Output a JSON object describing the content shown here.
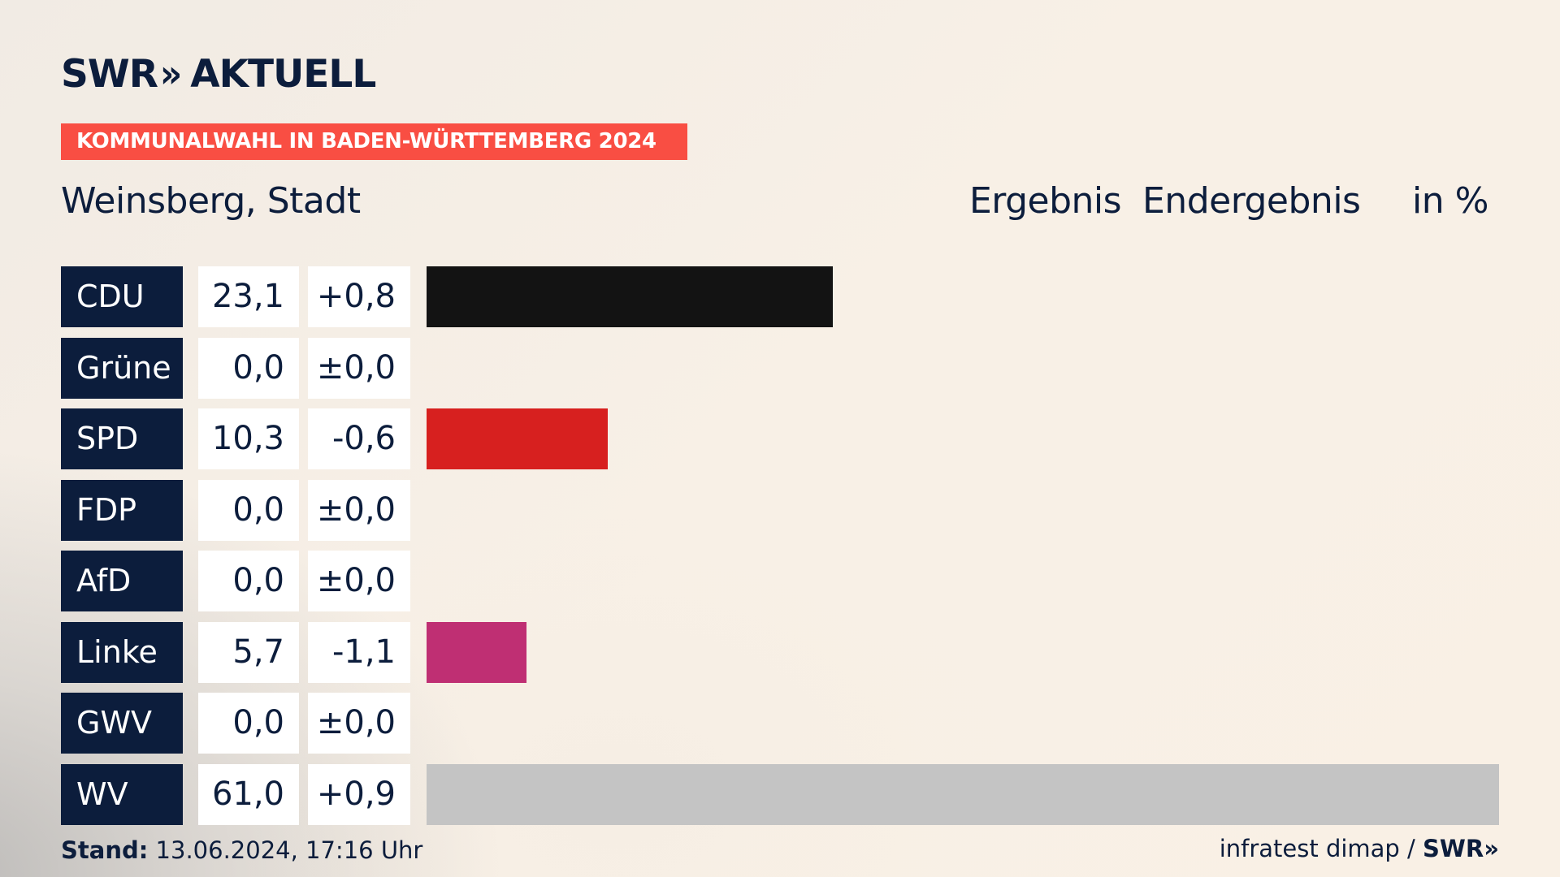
{
  "header": {
    "logo_text": "SWR",
    "logo_chevrons": "»",
    "logo_suffix": "AKTUELL",
    "banner": "KOMMUNALWAHL IN BADEN-WÜRTTEMBERG 2024",
    "region": "Weinsberg, Stadt",
    "col_result": "Ergebnis",
    "col_final": "Endergebnis",
    "col_unit": "in %"
  },
  "chart_data": {
    "type": "bar",
    "categories": [
      "CDU",
      "Grüne",
      "SPD",
      "FDP",
      "AfD",
      "Linke",
      "GWV",
      "WV"
    ],
    "values": [
      23.1,
      0.0,
      10.3,
      0.0,
      0.0,
      5.7,
      0.0,
      61.0
    ],
    "values_text": [
      "23,1",
      "0,0",
      "10,3",
      "0,0",
      "0,0",
      "5,7",
      "0,0",
      "61,0"
    ],
    "diffs_text": [
      "+0,8",
      "±0,0",
      "-0,6",
      "±0,0",
      "±0,0",
      "-1,1",
      "±0,0",
      "+0,9"
    ],
    "colors": [
      "#131313",
      "#1f9a3d",
      "#d7201f",
      "#f5d300",
      "#1f8fd6",
      "#bf2f73",
      "#8a8a8a",
      "#c4c4c4"
    ],
    "xlim": [
      0,
      61.0
    ]
  },
  "footer": {
    "stand_label": "Stand:",
    "stand_value": "13.06.2024, 17:16 Uhr",
    "source": "infratest dimap /",
    "brand": "SWR»"
  }
}
